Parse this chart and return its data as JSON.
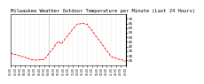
{
  "title": "Milwaukee Weather Outdoor Temperature per Minute (Last 24 Hours)",
  "title_fontsize": 4.0,
  "background_color": "#ffffff",
  "line_color": "#ff0000",
  "line_style": "--",
  "line_width": 0.6,
  "ylim": [
    20,
    75
  ],
  "yticks": [
    25,
    30,
    35,
    40,
    45,
    50,
    55,
    60,
    65,
    70
  ],
  "grid_style": ":",
  "grid_color": "#bbbbbb",
  "vline_x": 8.0,
  "xlim": [
    0,
    24
  ],
  "xtick_step": 1
}
